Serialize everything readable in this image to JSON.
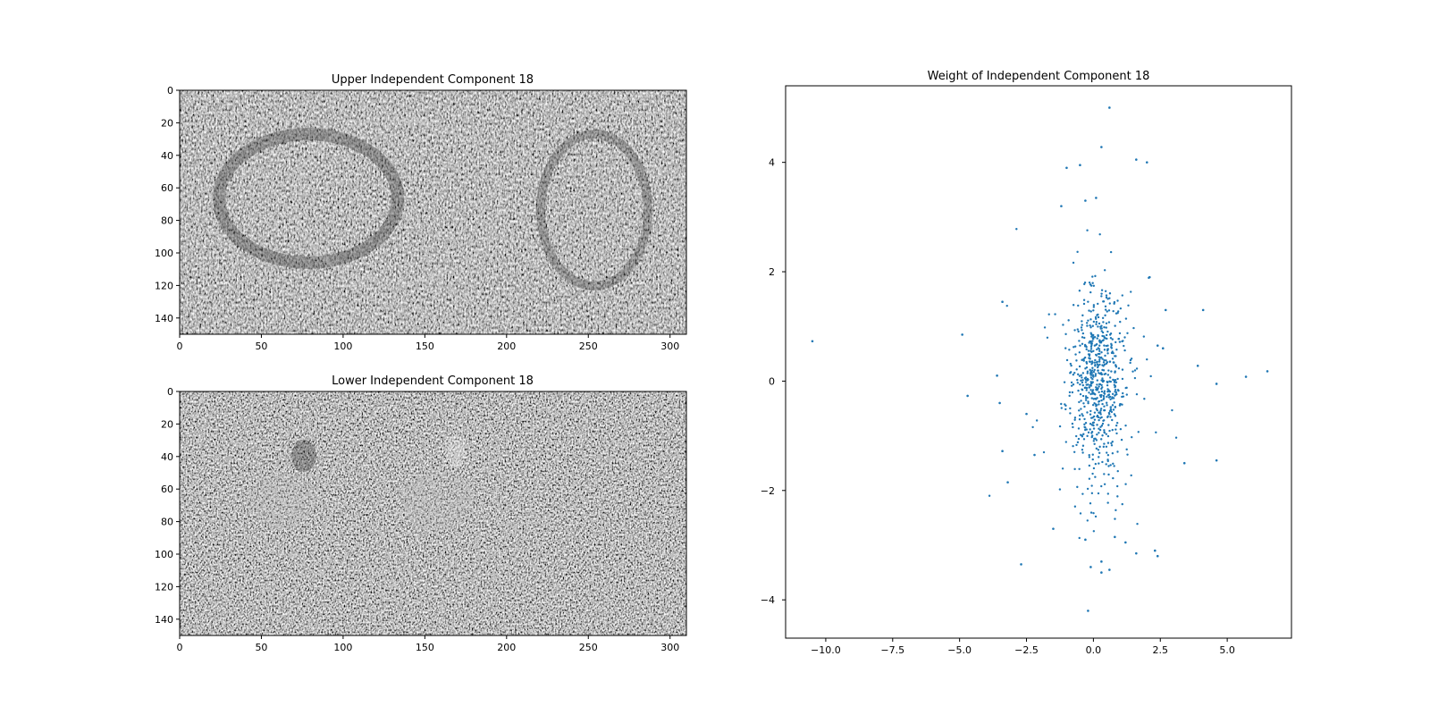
{
  "chart_data": [
    {
      "type": "heatmap",
      "title": "Upper Independent Component 18",
      "colormap": "gray",
      "xlim": [
        0,
        310
      ],
      "ylim": [
        150,
        0
      ],
      "xticks": [
        "0",
        "50",
        "100",
        "150",
        "200",
        "250",
        "300"
      ],
      "yticks": [
        "0",
        "20",
        "40",
        "60",
        "80",
        "100",
        "120",
        "140"
      ]
    },
    {
      "type": "heatmap",
      "title": "Lower Independent Component 18",
      "colormap": "gray",
      "xlim": [
        0,
        310
      ],
      "ylim": [
        150,
        0
      ],
      "xticks": [
        "0",
        "50",
        "100",
        "150",
        "200",
        "250",
        "300"
      ],
      "yticks": [
        "0",
        "20",
        "40",
        "60",
        "80",
        "100",
        "120",
        "140"
      ]
    },
    {
      "type": "scatter",
      "title": "Weight of Independent Component 18",
      "xlim": [
        -11.5,
        7.4
      ],
      "ylim": [
        -4.7,
        5.4
      ],
      "xticks": [
        "−10.0",
        "−7.5",
        "−5.0",
        "−2.5",
        "0.0",
        "2.5",
        "5.0"
      ],
      "yticks": [
        "−4",
        "−2",
        "0",
        "2",
        "4"
      ],
      "color": "#1f77b4",
      "points": [
        {
          "x": -10.5,
          "y": 0.73
        },
        {
          "x": -4.9,
          "y": 0.85
        },
        {
          "x": -4.7,
          "y": -0.27
        },
        {
          "x": -3.6,
          "y": 0.1
        },
        {
          "x": -3.5,
          "y": -0.4
        },
        {
          "x": -3.4,
          "y": 1.45
        },
        {
          "x": -3.4,
          "y": -1.28
        },
        {
          "x": -3.2,
          "y": -1.85
        },
        {
          "x": -2.7,
          "y": -3.35
        },
        {
          "x": -2.5,
          "y": -0.6
        },
        {
          "x": -2.2,
          "y": -1.35
        },
        {
          "x": -1.5,
          "y": -2.7
        },
        {
          "x": -1.2,
          "y": 3.2
        },
        {
          "x": -1.0,
          "y": 3.9
        },
        {
          "x": -0.5,
          "y": 3.95
        },
        {
          "x": 0.3,
          "y": 4.28
        },
        {
          "x": 0.6,
          "y": 5.0
        },
        {
          "x": 1.6,
          "y": 4.05
        },
        {
          "x": 2.0,
          "y": 4.0
        },
        {
          "x": -0.3,
          "y": 3.3
        },
        {
          "x": 0.1,
          "y": 3.35
        },
        {
          "x": 2.1,
          "y": 1.9
        },
        {
          "x": 2.7,
          "y": 1.3
        },
        {
          "x": 2.4,
          "y": 0.65
        },
        {
          "x": 2.6,
          "y": 0.6
        },
        {
          "x": 3.9,
          "y": 0.28
        },
        {
          "x": 4.1,
          "y": 1.3
        },
        {
          "x": 4.6,
          "y": -0.05
        },
        {
          "x": 4.6,
          "y": -1.45
        },
        {
          "x": 5.7,
          "y": 0.08
        },
        {
          "x": 6.5,
          "y": 0.18
        },
        {
          "x": 3.4,
          "y": -1.5
        },
        {
          "x": 2.3,
          "y": -3.1
        },
        {
          "x": 2.4,
          "y": -3.2
        },
        {
          "x": 1.6,
          "y": -3.15
        },
        {
          "x": 0.6,
          "y": -3.45
        },
        {
          "x": 0.3,
          "y": -3.5
        },
        {
          "x": -0.2,
          "y": -4.2
        },
        {
          "x": 0.8,
          "y": -2.85
        },
        {
          "x": -0.3,
          "y": -2.9
        },
        {
          "x": 1.2,
          "y": -2.95
        },
        {
          "x": 0.3,
          "y": -3.3
        },
        {
          "x": -0.1,
          "y": -3.4
        }
      ],
      "cloud": {
        "n": 700,
        "mean_x": 0.1,
        "mean_y": 0.0,
        "sd_x": 0.55,
        "sd_y": 0.85
      }
    }
  ]
}
